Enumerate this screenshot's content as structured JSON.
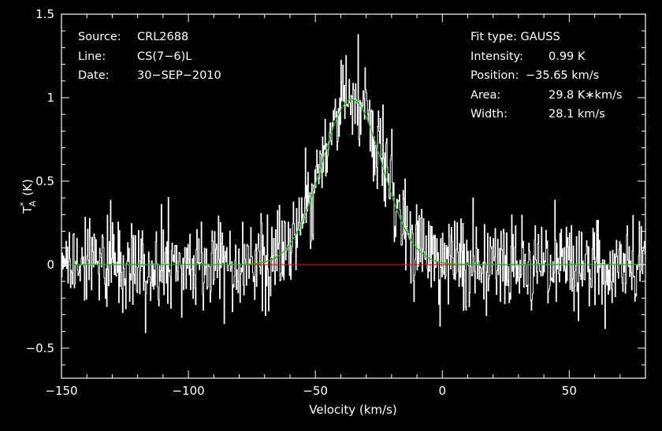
{
  "chart_data": {
    "type": "line",
    "xlabel": "Velocity (km/s)",
    "ylabel_main": "T",
    "ylabel_sup": "*",
    "ylabel_sub": "A",
    "ylabel_unit": "(K)",
    "xlim": [
      -150,
      80
    ],
    "ylim": [
      -0.68,
      1.5
    ],
    "x_ticks": [
      -150,
      -100,
      -50,
      0,
      50
    ],
    "x_tick_labels": [
      "−150",
      "−100",
      "−50",
      "0",
      "50"
    ],
    "y_ticks": [
      -0.5,
      0,
      0.5,
      1,
      1.5
    ],
    "y_tick_labels": [
      "−0.5",
      "0",
      "0.5",
      "1",
      "1.5"
    ],
    "baseline_level": 0,
    "fit": {
      "type": "GAUSS",
      "intensity_k": 0.99,
      "position_kms": -35.65,
      "width_kms": 28.1,
      "area_k_kms": 29.8
    },
    "noise_rms_k": 0.14,
    "channel_width_kms": 0.25,
    "series": [
      {
        "role": "spectrum",
        "color": "#ffffff"
      },
      {
        "role": "gaussian-fit",
        "color": "#00cc00"
      },
      {
        "role": "baseline-line",
        "color": "#ff0000"
      }
    ],
    "grid": false,
    "ticks_all_sides": true
  },
  "info_left": {
    "source_label": "Source:",
    "source_value": "CRL2688",
    "line_label": "Line:",
    "line_value": "CS(7−6)L",
    "date_label": "Date:",
    "date_value": "30−SEP−2010"
  },
  "info_right": {
    "fit_type_text": "Fit type: GAUSS",
    "intensity_label": "Intensity:",
    "intensity_value": "0.99 K",
    "position_label": "Position:",
    "position_value": "−35.65 km/s",
    "area_label": "Area:",
    "area_value": "29.8 K∗km/s",
    "width_label": "Width:",
    "width_value": "28.1 km/s"
  }
}
